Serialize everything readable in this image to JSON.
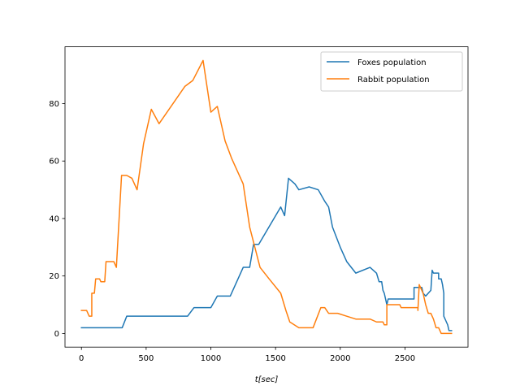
{
  "chart_data": {
    "type": "line",
    "title": "",
    "xlabel": "t[sec]",
    "ylabel": "",
    "xlim": [
      -127,
      2987
    ],
    "ylim": [
      -4.75,
      99.75
    ],
    "xticks": [
      0,
      500,
      1000,
      1500,
      2000,
      2500
    ],
    "yticks": [
      0,
      20,
      40,
      60,
      80
    ],
    "xtick_labels": [
      "0",
      "500",
      "1000",
      "1500",
      "2000",
      "2500"
    ],
    "ytick_labels": [
      "0",
      "20",
      "40",
      "60",
      "80"
    ],
    "grid": false,
    "legend_position": "top-right",
    "series": [
      {
        "name": "Foxes population",
        "color": "#1f77b4",
        "points": [
          [
            0,
            2
          ],
          [
            315,
            2
          ],
          [
            350,
            6
          ],
          [
            820,
            6
          ],
          [
            870,
            9
          ],
          [
            1000,
            9
          ],
          [
            1050,
            13
          ],
          [
            1150,
            13
          ],
          [
            1250,
            23
          ],
          [
            1300,
            23
          ],
          [
            1330,
            31
          ],
          [
            1370,
            31
          ],
          [
            1540,
            44
          ],
          [
            1570,
            41
          ],
          [
            1600,
            54
          ],
          [
            1650,
            52
          ],
          [
            1680,
            50
          ],
          [
            1760,
            51
          ],
          [
            1830,
            50
          ],
          [
            1880,
            46
          ],
          [
            1910,
            44
          ],
          [
            1940,
            37
          ],
          [
            2000,
            30
          ],
          [
            2050,
            25
          ],
          [
            2120,
            21
          ],
          [
            2230,
            23
          ],
          [
            2280,
            21
          ],
          [
            2300,
            18
          ],
          [
            2320,
            18
          ],
          [
            2330,
            15
          ],
          [
            2340,
            14
          ],
          [
            2350,
            12
          ],
          [
            2360,
            10
          ],
          [
            2370,
            12
          ],
          [
            2570,
            12
          ],
          [
            2570,
            16
          ],
          [
            2630,
            16
          ],
          [
            2640,
            14
          ],
          [
            2660,
            13
          ],
          [
            2680,
            14
          ],
          [
            2700,
            15
          ],
          [
            2710,
            22
          ],
          [
            2720,
            21
          ],
          [
            2760,
            21
          ],
          [
            2760,
            19
          ],
          [
            2780,
            19
          ],
          [
            2790,
            17
          ],
          [
            2800,
            14
          ],
          [
            2800,
            6
          ],
          [
            2810,
            5
          ],
          [
            2820,
            4
          ],
          [
            2830,
            3
          ],
          [
            2840,
            1
          ],
          [
            2850,
            1
          ],
          [
            2860,
            1
          ]
        ]
      },
      {
        "name": "Rabbit population",
        "color": "#ff7f0e",
        "points": [
          [
            0,
            8
          ],
          [
            40,
            8
          ],
          [
            60,
            6
          ],
          [
            80,
            6
          ],
          [
            80,
            14
          ],
          [
            100,
            14
          ],
          [
            110,
            19
          ],
          [
            140,
            19
          ],
          [
            150,
            18
          ],
          [
            180,
            18
          ],
          [
            190,
            25
          ],
          [
            250,
            25
          ],
          [
            270,
            23
          ],
          [
            310,
            55
          ],
          [
            350,
            55
          ],
          [
            390,
            54
          ],
          [
            430,
            50
          ],
          [
            480,
            66
          ],
          [
            540,
            78
          ],
          [
            600,
            73
          ],
          [
            800,
            86
          ],
          [
            860,
            88
          ],
          [
            940,
            95
          ],
          [
            1000,
            77
          ],
          [
            1050,
            79
          ],
          [
            1110,
            67
          ],
          [
            1160,
            61
          ],
          [
            1200,
            57
          ],
          [
            1250,
            52
          ],
          [
            1300,
            37
          ],
          [
            1380,
            23
          ],
          [
            1450,
            19
          ],
          [
            1540,
            14
          ],
          [
            1580,
            8
          ],
          [
            1610,
            4
          ],
          [
            1680,
            2
          ],
          [
            1790,
            2
          ],
          [
            1850,
            9
          ],
          [
            1880,
            9
          ],
          [
            1910,
            7
          ],
          [
            1980,
            7
          ],
          [
            2050,
            6
          ],
          [
            2120,
            5
          ],
          [
            2230,
            5
          ],
          [
            2280,
            4
          ],
          [
            2330,
            4
          ],
          [
            2340,
            3
          ],
          [
            2360,
            3
          ],
          [
            2360,
            10
          ],
          [
            2460,
            10
          ],
          [
            2470,
            9
          ],
          [
            2570,
            9
          ],
          [
            2600,
            9
          ],
          [
            2600,
            8
          ],
          [
            2610,
            17
          ],
          [
            2640,
            14
          ],
          [
            2660,
            10
          ],
          [
            2680,
            7
          ],
          [
            2700,
            7
          ],
          [
            2720,
            5
          ],
          [
            2740,
            2
          ],
          [
            2760,
            2
          ],
          [
            2780,
            0
          ],
          [
            2860,
            0
          ]
        ]
      }
    ]
  }
}
